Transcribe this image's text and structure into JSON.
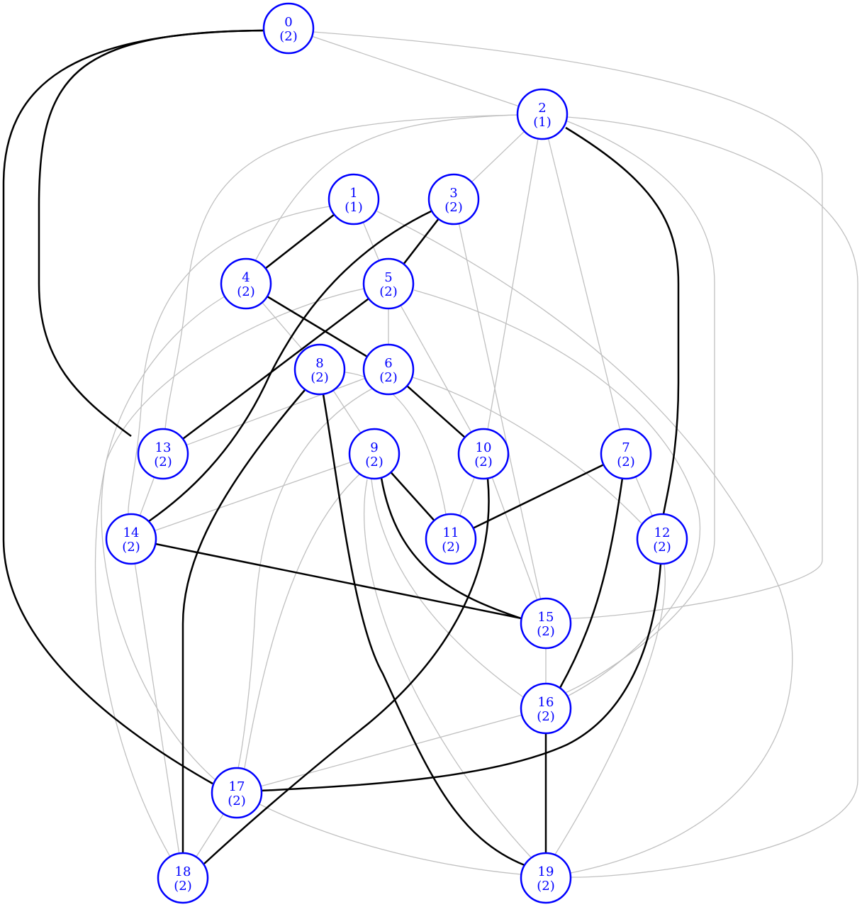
{
  "graph": {
    "node_color": "#0000ff",
    "light_edge_color": "#c0c0c0",
    "bold_edge_color": "#000000",
    "nodes": [
      {
        "id": "0",
        "label": "0",
        "sub": "(2)"
      },
      {
        "id": "1",
        "label": "1",
        "sub": "(1)"
      },
      {
        "id": "2",
        "label": "2",
        "sub": "(1)"
      },
      {
        "id": "3",
        "label": "3",
        "sub": "(2)"
      },
      {
        "id": "4",
        "label": "4",
        "sub": "(2)"
      },
      {
        "id": "5",
        "label": "5",
        "sub": "(2)"
      },
      {
        "id": "6",
        "label": "6",
        "sub": "(2)"
      },
      {
        "id": "7",
        "label": "7",
        "sub": "(2)"
      },
      {
        "id": "8",
        "label": "8",
        "sub": "(2)"
      },
      {
        "id": "9",
        "label": "9",
        "sub": "(2)"
      },
      {
        "id": "10",
        "label": "10",
        "sub": "(2)"
      },
      {
        "id": "11",
        "label": "11",
        "sub": "(2)"
      },
      {
        "id": "12",
        "label": "12",
        "sub": "(2)"
      },
      {
        "id": "13",
        "label": "13",
        "sub": "(2)"
      },
      {
        "id": "14",
        "label": "14",
        "sub": "(2)"
      },
      {
        "id": "15",
        "label": "15",
        "sub": "(2)"
      },
      {
        "id": "16",
        "label": "16",
        "sub": "(2)"
      },
      {
        "id": "17",
        "label": "17",
        "sub": "(2)"
      },
      {
        "id": "18",
        "label": "18",
        "sub": "(2)"
      },
      {
        "id": "19",
        "label": "19",
        "sub": "(2)"
      }
    ],
    "edges": [
      {
        "from": "0",
        "to": "2",
        "style": "light"
      },
      {
        "from": "0",
        "to": "15",
        "style": "light"
      },
      {
        "from": "0",
        "to": "13",
        "style": "bold"
      },
      {
        "from": "0",
        "to": "17",
        "style": "bold"
      },
      {
        "from": "2",
        "to": "3",
        "style": "light"
      },
      {
        "from": "2",
        "to": "4",
        "style": "light"
      },
      {
        "from": "2",
        "to": "13",
        "style": "light"
      },
      {
        "from": "2",
        "to": "10",
        "style": "light"
      },
      {
        "from": "2",
        "to": "7",
        "style": "light"
      },
      {
        "from": "2",
        "to": "16",
        "style": "light"
      },
      {
        "from": "2",
        "to": "19",
        "style": "light"
      },
      {
        "from": "2",
        "to": "12",
        "style": "bold"
      },
      {
        "from": "1",
        "to": "4",
        "style": "bold"
      },
      {
        "from": "1",
        "to": "5",
        "style": "light"
      },
      {
        "from": "1",
        "to": "14",
        "style": "light"
      },
      {
        "from": "1",
        "to": "19",
        "style": "light"
      },
      {
        "from": "3",
        "to": "5",
        "style": "bold"
      },
      {
        "from": "3",
        "to": "14",
        "style": "bold"
      },
      {
        "from": "3",
        "to": "15",
        "style": "light"
      },
      {
        "from": "4",
        "to": "6",
        "style": "bold"
      },
      {
        "from": "4",
        "to": "8",
        "style": "light"
      },
      {
        "from": "4",
        "to": "18",
        "style": "light"
      },
      {
        "from": "5",
        "to": "6",
        "style": "light"
      },
      {
        "from": "5",
        "to": "13",
        "style": "bold"
      },
      {
        "from": "5",
        "to": "10",
        "style": "light"
      },
      {
        "from": "5",
        "to": "17",
        "style": "light"
      },
      {
        "from": "5",
        "to": "16",
        "style": "light"
      },
      {
        "from": "6",
        "to": "10",
        "style": "bold"
      },
      {
        "from": "6",
        "to": "13",
        "style": "light"
      },
      {
        "from": "6",
        "to": "12",
        "style": "light"
      },
      {
        "from": "6",
        "to": "17",
        "style": "light"
      },
      {
        "from": "8",
        "to": "9",
        "style": "light"
      },
      {
        "from": "8",
        "to": "11",
        "style": "light"
      },
      {
        "from": "8",
        "to": "18",
        "style": "bold"
      },
      {
        "from": "8",
        "to": "19",
        "style": "bold"
      },
      {
        "from": "9",
        "to": "11",
        "style": "bold"
      },
      {
        "from": "9",
        "to": "15",
        "style": "bold"
      },
      {
        "from": "9",
        "to": "14",
        "style": "light"
      },
      {
        "from": "9",
        "to": "17",
        "style": "light"
      },
      {
        "from": "9",
        "to": "16",
        "style": "light"
      },
      {
        "from": "9",
        "to": "19",
        "style": "light"
      },
      {
        "from": "10",
        "to": "11",
        "style": "light"
      },
      {
        "from": "10",
        "to": "15",
        "style": "light"
      },
      {
        "from": "10",
        "to": "18",
        "style": "bold"
      },
      {
        "from": "7",
        "to": "11",
        "style": "bold"
      },
      {
        "from": "7",
        "to": "12",
        "style": "light"
      },
      {
        "from": "7",
        "to": "16",
        "style": "bold"
      },
      {
        "from": "12",
        "to": "17",
        "style": "bold"
      },
      {
        "from": "12",
        "to": "19",
        "style": "light"
      },
      {
        "from": "13",
        "to": "14",
        "style": "light"
      },
      {
        "from": "14",
        "to": "15",
        "style": "bold"
      },
      {
        "from": "14",
        "to": "18",
        "style": "light"
      },
      {
        "from": "15",
        "to": "16",
        "style": "light"
      },
      {
        "from": "16",
        "to": "19",
        "style": "bold"
      },
      {
        "from": "16",
        "to": "17",
        "style": "light"
      },
      {
        "from": "17",
        "to": "18",
        "style": "light"
      },
      {
        "from": "17",
        "to": "19",
        "style": "light"
      }
    ]
  }
}
